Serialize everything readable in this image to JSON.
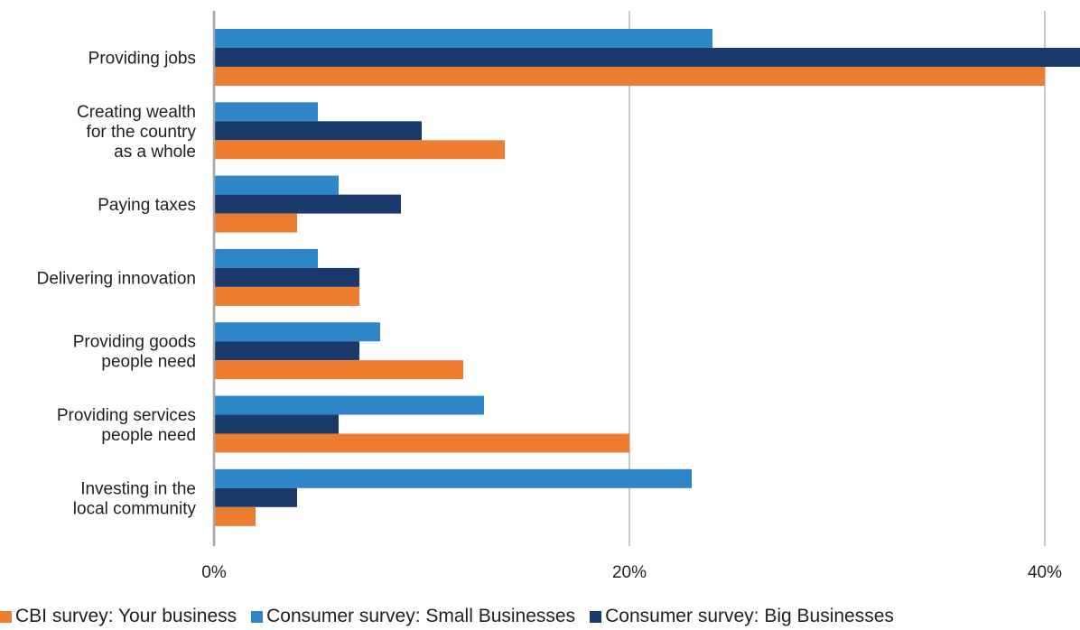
{
  "colors": {
    "cbi": "#ed7d31",
    "small": "#2e86c8",
    "big": "#1a3a6b",
    "grid": "#c8c8c8",
    "axis": "#a6a6a6"
  },
  "chart_data": {
    "type": "bar",
    "orientation": "horizontal",
    "categories": [
      "Providing jobs",
      "Creating wealth\nfor the country\nas a whole",
      "Paying taxes",
      "Delivering innovation",
      "Providing goods\npeople need",
      "Providing services\npeople need",
      "Investing in the\nlocal community"
    ],
    "series": [
      {
        "name": "Consumer survey: Small Businesses",
        "color": "#2e86c8",
        "values": [
          24,
          5,
          6,
          5,
          8,
          13,
          23
        ]
      },
      {
        "name": "Consumer survey: Big Businesses",
        "color": "#1a3a6b",
        "values": [
          42,
          10,
          9,
          7,
          7,
          6,
          4
        ]
      },
      {
        "name": "CBI survey: Your business",
        "color": "#ed7d31",
        "values": [
          40,
          14,
          4,
          7,
          12,
          20,
          2
        ]
      }
    ],
    "x_ticks": [
      "0%",
      "20%",
      "40%"
    ],
    "x_tick_values": [
      0,
      20,
      40
    ],
    "xlim": [
      0,
      41.6
    ],
    "grid": true,
    "legend_position": "bottom",
    "legend_order": [
      "CBI survey: Your business",
      "Consumer survey: Small Businesses",
      "Consumer survey: Big Businesses"
    ]
  }
}
